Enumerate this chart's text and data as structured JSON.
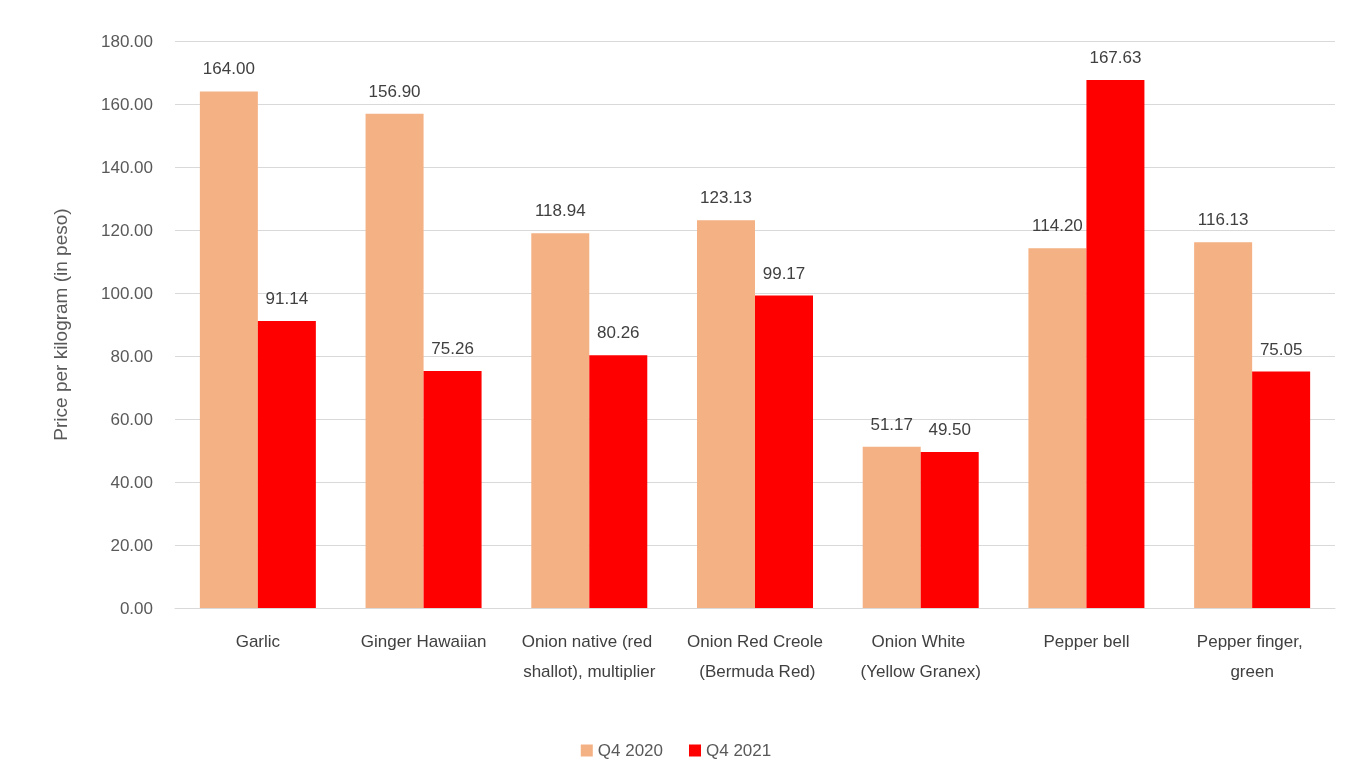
{
  "chart_data": {
    "type": "bar",
    "ylabel": "Price per kilogram (in peso)",
    "categories": [
      "Garlic",
      "Ginger Hawaiian",
      "Onion native (red shallot), multiplier",
      "Onion Red Creole (Bermuda Red)",
      "Onion White (Yellow Granex)",
      "Pepper bell",
      "Pepper finger, green"
    ],
    "series": [
      {
        "name": "Q4 2020",
        "color": "#f4b183",
        "values": [
          164.0,
          156.9,
          118.94,
          123.13,
          51.17,
          114.2,
          116.13
        ],
        "value_labels": [
          "164.00",
          "156.90",
          "118.94",
          "123.13",
          "51.17",
          "114.20",
          "116.13"
        ]
      },
      {
        "name": "Q4 2021",
        "color": "#ff0000",
        "values": [
          91.14,
          75.26,
          80.26,
          99.17,
          49.5,
          167.63,
          75.05
        ],
        "value_labels": [
          "91.14",
          "75.26",
          "80.26",
          "99.17",
          "49.50",
          "167.63",
          "75.05"
        ]
      }
    ],
    "ylim": [
      0,
      180
    ],
    "yticks": [
      {
        "value": 0,
        "label": "0.00"
      },
      {
        "value": 20,
        "label": "20.00"
      },
      {
        "value": 40,
        "label": "40.00"
      },
      {
        "value": 60,
        "label": "60.00"
      },
      {
        "value": 80,
        "label": "80.00"
      },
      {
        "value": 100,
        "label": "100.00"
      },
      {
        "value": 120,
        "label": "120.00"
      },
      {
        "value": 140,
        "label": "140.00"
      },
      {
        "value": 160,
        "label": "160.00"
      },
      {
        "value": 180,
        "label": "180.00"
      }
    ],
    "grid": "y",
    "legend": "bottom"
  }
}
